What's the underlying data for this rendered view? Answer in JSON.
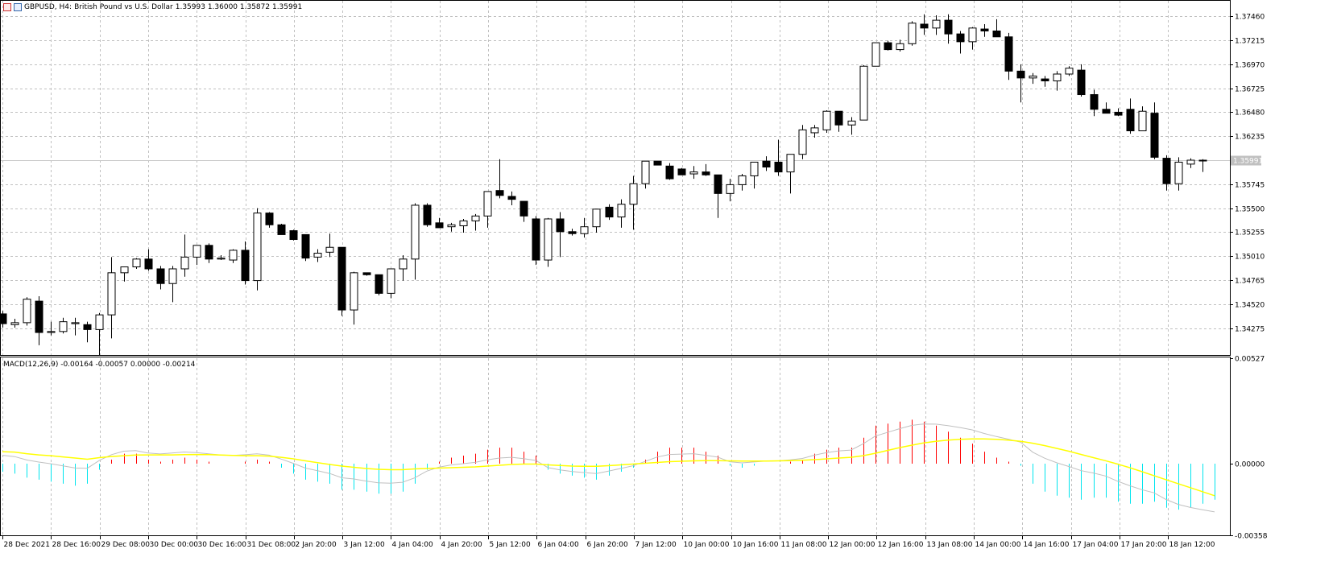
{
  "header": {
    "symbol": "GBPUSD, H4:",
    "description": "British Pound vs U.S. Dollar",
    "ohlc": "1.35993 1.36000 1.35872 1.35991"
  },
  "macd_header": "MACD(12,26,9) -0.00164 -0.00057 0.00000 -0.00214",
  "colors": {
    "background": "#ffffff",
    "grid": "#c0c0c0",
    "candle_up": "#ffffff",
    "candle_down": "#000000",
    "macd_line": "#c0c0c0",
    "signal_line": "#ffff00",
    "hist_positive": "#ff0000",
    "hist_negative": "#00e5ee"
  },
  "icons": [
    "chart-window-icon",
    "chart-properties-icon"
  ],
  "chart_data": {
    "type": "candlestick",
    "symbol": "GBPUSD",
    "timeframe": "H4",
    "price_axis": {
      "ticks": [
        "1.37460",
        "1.37215",
        "1.36970",
        "1.36725",
        "1.36480",
        "1.36235",
        "1.35745",
        "1.35500",
        "1.35255",
        "1.35010",
        "1.34765",
        "1.34520",
        "1.34275"
      ],
      "min": 1.34,
      "max": 1.3761
    },
    "current_price": "1.35991",
    "time_axis": [
      "28 Dec 2021",
      "28 Dec 16:00",
      "29 Dec 08:00",
      "30 Dec 00:00",
      "30 Dec 16:00",
      "31 Dec 08:00",
      "2 Jan 20:00",
      "3 Jan 12:00",
      "4 Jan 04:00",
      "4 Jan 20:00",
      "5 Jan 12:00",
      "6 Jan 04:00",
      "6 Jan 20:00",
      "7 Jan 12:00",
      "10 Jan 00:00",
      "10 Jan 16:00",
      "11 Jan 08:00",
      "12 Jan 00:00",
      "12 Jan 16:00",
      "13 Jan 08:00",
      "14 Jan 00:00",
      "14 Jan 16:00",
      "17 Jan 04:00",
      "17 Jan 20:00",
      "18 Jan 12:00"
    ],
    "candles": [
      [
        1.3442,
        1.3445,
        1.3428,
        1.3432
      ],
      [
        1.3431,
        1.3437,
        1.3428,
        1.3433
      ],
      [
        1.3433,
        1.3459,
        1.343,
        1.3457
      ],
      [
        1.3455,
        1.346,
        1.341,
        1.3423
      ],
      [
        1.3423,
        1.3434,
        1.342,
        1.3424
      ],
      [
        1.3424,
        1.3438,
        1.3422,
        1.3434
      ],
      [
        1.3432,
        1.3438,
        1.342,
        1.3433
      ],
      [
        1.3431,
        1.3434,
        1.3413,
        1.3426
      ],
      [
        1.3426,
        1.3443,
        1.34,
        1.3441
      ],
      [
        1.3441,
        1.35,
        1.3417,
        1.3484
      ],
      [
        1.3484,
        1.349,
        1.3475,
        1.349
      ],
      [
        1.349,
        1.3499,
        1.3488,
        1.3498
      ],
      [
        1.3498,
        1.3508,
        1.3486,
        1.3488
      ],
      [
        1.3488,
        1.3491,
        1.3467,
        1.3473
      ],
      [
        1.3473,
        1.3491,
        1.3454,
        1.3488
      ],
      [
        1.3488,
        1.3523,
        1.348,
        1.35
      ],
      [
        1.35,
        1.3512,
        1.3492,
        1.3512
      ],
      [
        1.3512,
        1.3514,
        1.3494,
        1.3498
      ],
      [
        1.3498,
        1.3502,
        1.3497,
        1.3499
      ],
      [
        1.3497,
        1.3508,
        1.3494,
        1.3507
      ],
      [
        1.3507,
        1.3516,
        1.3472,
        1.3476
      ],
      [
        1.3476,
        1.355,
        1.3466,
        1.3545
      ],
      [
        1.3545,
        1.3546,
        1.353,
        1.3533
      ],
      [
        1.3533,
        1.3534,
        1.3523,
        1.3523
      ],
      [
        1.3527,
        1.3528,
        1.3517,
        1.3518
      ],
      [
        1.3523,
        1.3523,
        1.3496,
        1.3499
      ],
      [
        1.35,
        1.3508,
        1.3495,
        1.3504
      ],
      [
        1.3505,
        1.3524,
        1.35,
        1.351
      ],
      [
        1.351,
        1.351,
        1.344,
        1.3446
      ],
      [
        1.3446,
        1.3485,
        1.3431,
        1.3484
      ],
      [
        1.3484,
        1.3484,
        1.3481,
        1.3482
      ],
      [
        1.3482,
        1.3482,
        1.3461,
        1.3463
      ],
      [
        1.3463,
        1.3488,
        1.3458,
        1.3488
      ],
      [
        1.3488,
        1.3502,
        1.3476,
        1.3498
      ],
      [
        1.3498,
        1.3555,
        1.3477,
        1.3553
      ],
      [
        1.3553,
        1.3555,
        1.3531,
        1.3533
      ],
      [
        1.3535,
        1.354,
        1.3533,
        1.353
      ],
      [
        1.3531,
        1.3535,
        1.3526,
        1.3533
      ],
      [
        1.3532,
        1.3539,
        1.3525,
        1.3537
      ],
      [
        1.3537,
        1.3544,
        1.3527,
        1.3542
      ],
      [
        1.3542,
        1.3565,
        1.353,
        1.3567
      ],
      [
        1.3568,
        1.36,
        1.356,
        1.3563
      ],
      [
        1.3562,
        1.3567,
        1.3553,
        1.3559
      ],
      [
        1.3557,
        1.3557,
        1.3536,
        1.3542
      ],
      [
        1.3539,
        1.3542,
        1.3492,
        1.3497
      ],
      [
        1.3497,
        1.354,
        1.349,
        1.3539
      ],
      [
        1.3539,
        1.3546,
        1.35,
        1.3526
      ],
      [
        1.3526,
        1.3529,
        1.3522,
        1.3524
      ],
      [
        1.3524,
        1.354,
        1.352,
        1.3531
      ],
      [
        1.3531,
        1.3548,
        1.3525,
        1.3549
      ],
      [
        1.3551,
        1.3554,
        1.3538,
        1.3541
      ],
      [
        1.3541,
        1.3559,
        1.353,
        1.3554
      ],
      [
        1.3554,
        1.3583,
        1.3528,
        1.3575
      ],
      [
        1.3575,
        1.3598,
        1.357,
        1.3598
      ],
      [
        1.3598,
        1.3598,
        1.3594,
        1.3594
      ],
      [
        1.3593,
        1.3596,
        1.3579,
        1.358
      ],
      [
        1.359,
        1.3591,
        1.3584,
        1.3584
      ],
      [
        1.3585,
        1.3593,
        1.358,
        1.3587
      ],
      [
        1.3587,
        1.3595,
        1.3583,
        1.3584
      ],
      [
        1.3584,
        1.3584,
        1.354,
        1.3565
      ],
      [
        1.3565,
        1.358,
        1.3557,
        1.3574
      ],
      [
        1.3574,
        1.3585,
        1.3568,
        1.3583
      ],
      [
        1.3583,
        1.3597,
        1.357,
        1.3597
      ],
      [
        1.3598,
        1.3603,
        1.3588,
        1.3592
      ],
      [
        1.3597,
        1.362,
        1.3583,
        1.3587
      ],
      [
        1.3587,
        1.3605,
        1.3565,
        1.3605
      ],
      [
        1.3605,
        1.3635,
        1.36,
        1.363
      ],
      [
        1.3627,
        1.3635,
        1.3622,
        1.3632
      ],
      [
        1.363,
        1.365,
        1.3627,
        1.3649
      ],
      [
        1.3649,
        1.3649,
        1.3628,
        1.3635
      ],
      [
        1.3635,
        1.3643,
        1.3625,
        1.3639
      ],
      [
        1.364,
        1.3696,
        1.364,
        1.3695
      ],
      [
        1.3695,
        1.3719,
        1.3695,
        1.3719
      ],
      [
        1.3719,
        1.3721,
        1.3711,
        1.3712
      ],
      [
        1.3712,
        1.3722,
        1.371,
        1.3718
      ],
      [
        1.3718,
        1.3741,
        1.3716,
        1.3739
      ],
      [
        1.3738,
        1.3748,
        1.3727,
        1.3734
      ],
      [
        1.3734,
        1.3747,
        1.3727,
        1.3742
      ],
      [
        1.3742,
        1.3748,
        1.3718,
        1.3728
      ],
      [
        1.3728,
        1.3731,
        1.3708,
        1.372
      ],
      [
        1.372,
        1.3735,
        1.3712,
        1.3734
      ],
      [
        1.3733,
        1.3738,
        1.3725,
        1.3731
      ],
      [
        1.3731,
        1.3743,
        1.3728,
        1.3725
      ],
      [
        1.3725,
        1.3729,
        1.3681,
        1.369
      ],
      [
        1.369,
        1.3697,
        1.3658,
        1.3683
      ],
      [
        1.3683,
        1.3688,
        1.3677,
        1.3685
      ],
      [
        1.3682,
        1.3685,
        1.3674,
        1.368
      ],
      [
        1.368,
        1.369,
        1.367,
        1.3687
      ],
      [
        1.3687,
        1.3695,
        1.3685,
        1.3693
      ],
      [
        1.3691,
        1.3697,
        1.3664,
        1.3666
      ],
      [
        1.3666,
        1.3671,
        1.3644,
        1.3651
      ],
      [
        1.3651,
        1.3658,
        1.3648,
        1.3647
      ],
      [
        1.3648,
        1.3652,
        1.3644,
        1.3645
      ],
      [
        1.3651,
        1.3662,
        1.3626,
        1.3629
      ],
      [
        1.3629,
        1.3654,
        1.3629,
        1.3649
      ],
      [
        1.3647,
        1.3658,
        1.36,
        1.3602
      ],
      [
        1.3601,
        1.3604,
        1.3568,
        1.3575
      ],
      [
        1.3575,
        1.3602,
        1.3568,
        1.3597
      ],
      [
        1.3595,
        1.3601,
        1.3591,
        1.3599
      ],
      [
        1.3599,
        1.36,
        1.3587,
        1.3599
      ]
    ],
    "macd": {
      "label": "MACD(12,26,9)",
      "axis_ticks": [
        "0.00527",
        "0.00000",
        "-0.00358"
      ],
      "min": -0.00358,
      "max": 0.00527,
      "histogram": [
        -0.0004,
        -0.0005,
        -0.0007,
        -0.0008,
        -0.0009,
        -0.001,
        -0.0011,
        -0.001,
        -0.0003,
        0.0002,
        0.0005,
        0.0005,
        0.0002,
        0.0001,
        0.0002,
        0.0003,
        0.0002,
        0.0001,
        0.0,
        0.0,
        0.0001,
        0.0002,
        0.0001,
        -0.0002,
        -0.0005,
        -0.0008,
        -0.0009,
        -0.001,
        -0.0013,
        -0.0013,
        -0.0014,
        -0.0015,
        -0.0015,
        -0.0014,
        -0.001,
        -0.0003,
        0.0001,
        0.0003,
        0.0004,
        0.0005,
        0.0007,
        0.0008,
        0.0008,
        0.0006,
        0.0004,
        -0.0003,
        -0.0005,
        -0.0006,
        -0.0007,
        -0.0008,
        -0.0006,
        -0.0004,
        -0.0002,
        0.0002,
        0.0006,
        0.0008,
        0.0008,
        0.0008,
        0.0006,
        0.0004,
        -0.0001,
        -0.0002,
        -0.0001,
        0.0,
        0.0,
        0.0001,
        0.0002,
        0.0005,
        0.0007,
        0.0008,
        0.0008,
        0.0013,
        0.0019,
        0.002,
        0.0021,
        0.0022,
        0.0021,
        0.0019,
        0.0016,
        0.0013,
        0.001,
        0.0006,
        0.0003,
        0.0001,
        -0.0001,
        -0.001,
        -0.0014,
        -0.0016,
        -0.0017,
        -0.0018,
        -0.0017,
        -0.0017,
        -0.0019,
        -0.002,
        -0.002,
        -0.0019,
        -0.0022,
        -0.0023,
        -0.0022,
        -0.002,
        -0.0018
      ],
      "signal": [
        0.0006,
        0.00058,
        0.0005,
        0.00044,
        0.0004,
        0.00034,
        0.00028,
        0.00022,
        0.0003,
        0.00036,
        0.0004,
        0.00043,
        0.00044,
        0.00044,
        0.00044,
        0.00045,
        0.00046,
        0.00045,
        0.00043,
        0.00041,
        0.0004,
        0.0004,
        0.00038,
        0.00032,
        0.00024,
        0.00014,
        5e-05,
        -4e-05,
        -0.00012,
        -0.00018,
        -0.00024,
        -0.00028,
        -0.0003,
        -0.0003,
        -0.00026,
        -0.00024,
        -0.00022,
        -0.0002,
        -0.00018,
        -0.00016,
        -0.00012,
        -8e-05,
        -4e-05,
        -2e-05,
        -2e-05,
        -6e-05,
        -9e-05,
        -0.00012,
        -0.00013,
        -0.00013,
        -0.0001,
        -6e-05,
        -2e-05,
        2e-05,
        6e-05,
        0.0001,
        0.00012,
        0.00014,
        0.00015,
        0.00015,
        0.00014,
        0.00013,
        0.00013,
        0.00013,
        0.00014,
        0.00015,
        0.00017,
        0.0002,
        0.00024,
        0.00028,
        0.00032,
        0.0004,
        0.00052,
        0.00066,
        0.0008,
        0.00092,
        0.00104,
        0.00112,
        0.00118,
        0.00122,
        0.00124,
        0.00124,
        0.00122,
        0.00118,
        0.00112,
        0.00102,
        0.0009,
        0.00076,
        0.00062,
        0.00046,
        0.0003,
        0.00015,
        -2e-05,
        -0.0002,
        -0.0004,
        -0.0006,
        -0.0008,
        -0.001,
        -0.0012,
        -0.0014,
        -0.0016
      ]
    }
  }
}
